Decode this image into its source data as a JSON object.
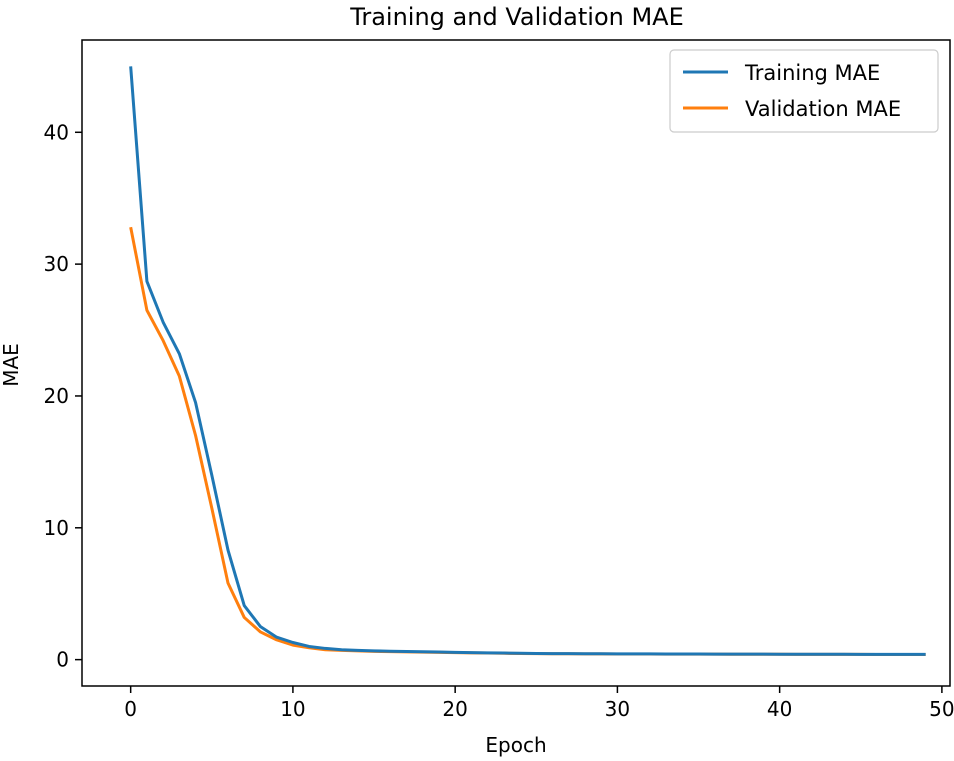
{
  "chart_data": {
    "type": "line",
    "title": "Training and Validation MAE",
    "xlabel": "Epoch",
    "ylabel": "MAE",
    "xlim": [
      -3,
      50.5
    ],
    "ylim": [
      -2,
      47
    ],
    "xticks": [
      0,
      10,
      20,
      30,
      40,
      50
    ],
    "yticks": [
      0,
      10,
      20,
      30,
      40
    ],
    "legend_position": "top-right",
    "x": [
      0,
      1,
      2,
      3,
      4,
      5,
      6,
      7,
      8,
      9,
      10,
      11,
      12,
      13,
      14,
      15,
      16,
      17,
      18,
      19,
      20,
      21,
      22,
      23,
      24,
      25,
      26,
      27,
      28,
      29,
      30,
      31,
      32,
      33,
      34,
      35,
      36,
      37,
      38,
      39,
      40,
      41,
      42,
      43,
      44,
      45,
      46,
      47,
      48,
      49
    ],
    "series": [
      {
        "name": "Training MAE",
        "color": "#1f77b4",
        "values": [
          45.0,
          28.7,
          25.6,
          23.2,
          19.5,
          14.0,
          8.3,
          4.1,
          2.5,
          1.7,
          1.3,
          1.0,
          0.85,
          0.75,
          0.7,
          0.66,
          0.64,
          0.62,
          0.6,
          0.58,
          0.55,
          0.53,
          0.51,
          0.5,
          0.48,
          0.47,
          0.46,
          0.46,
          0.45,
          0.45,
          0.44,
          0.44,
          0.44,
          0.43,
          0.43,
          0.43,
          0.42,
          0.42,
          0.42,
          0.42,
          0.41,
          0.41,
          0.41,
          0.41,
          0.41,
          0.4,
          0.4,
          0.4,
          0.4,
          0.4
        ]
      },
      {
        "name": "Validation MAE",
        "color": "#ff7f0e",
        "values": [
          32.8,
          26.5,
          24.2,
          21.5,
          17.0,
          11.5,
          5.8,
          3.2,
          2.1,
          1.5,
          1.1,
          0.9,
          0.75,
          0.7,
          0.66,
          0.63,
          0.61,
          0.59,
          0.57,
          0.55,
          0.53,
          0.51,
          0.5,
          0.48,
          0.47,
          0.46,
          0.45,
          0.45,
          0.44,
          0.44,
          0.43,
          0.43,
          0.43,
          0.42,
          0.42,
          0.42,
          0.42,
          0.41,
          0.41,
          0.41,
          0.41,
          0.4,
          0.4,
          0.4,
          0.4,
          0.4,
          0.39,
          0.39,
          0.39,
          0.39
        ]
      }
    ]
  }
}
